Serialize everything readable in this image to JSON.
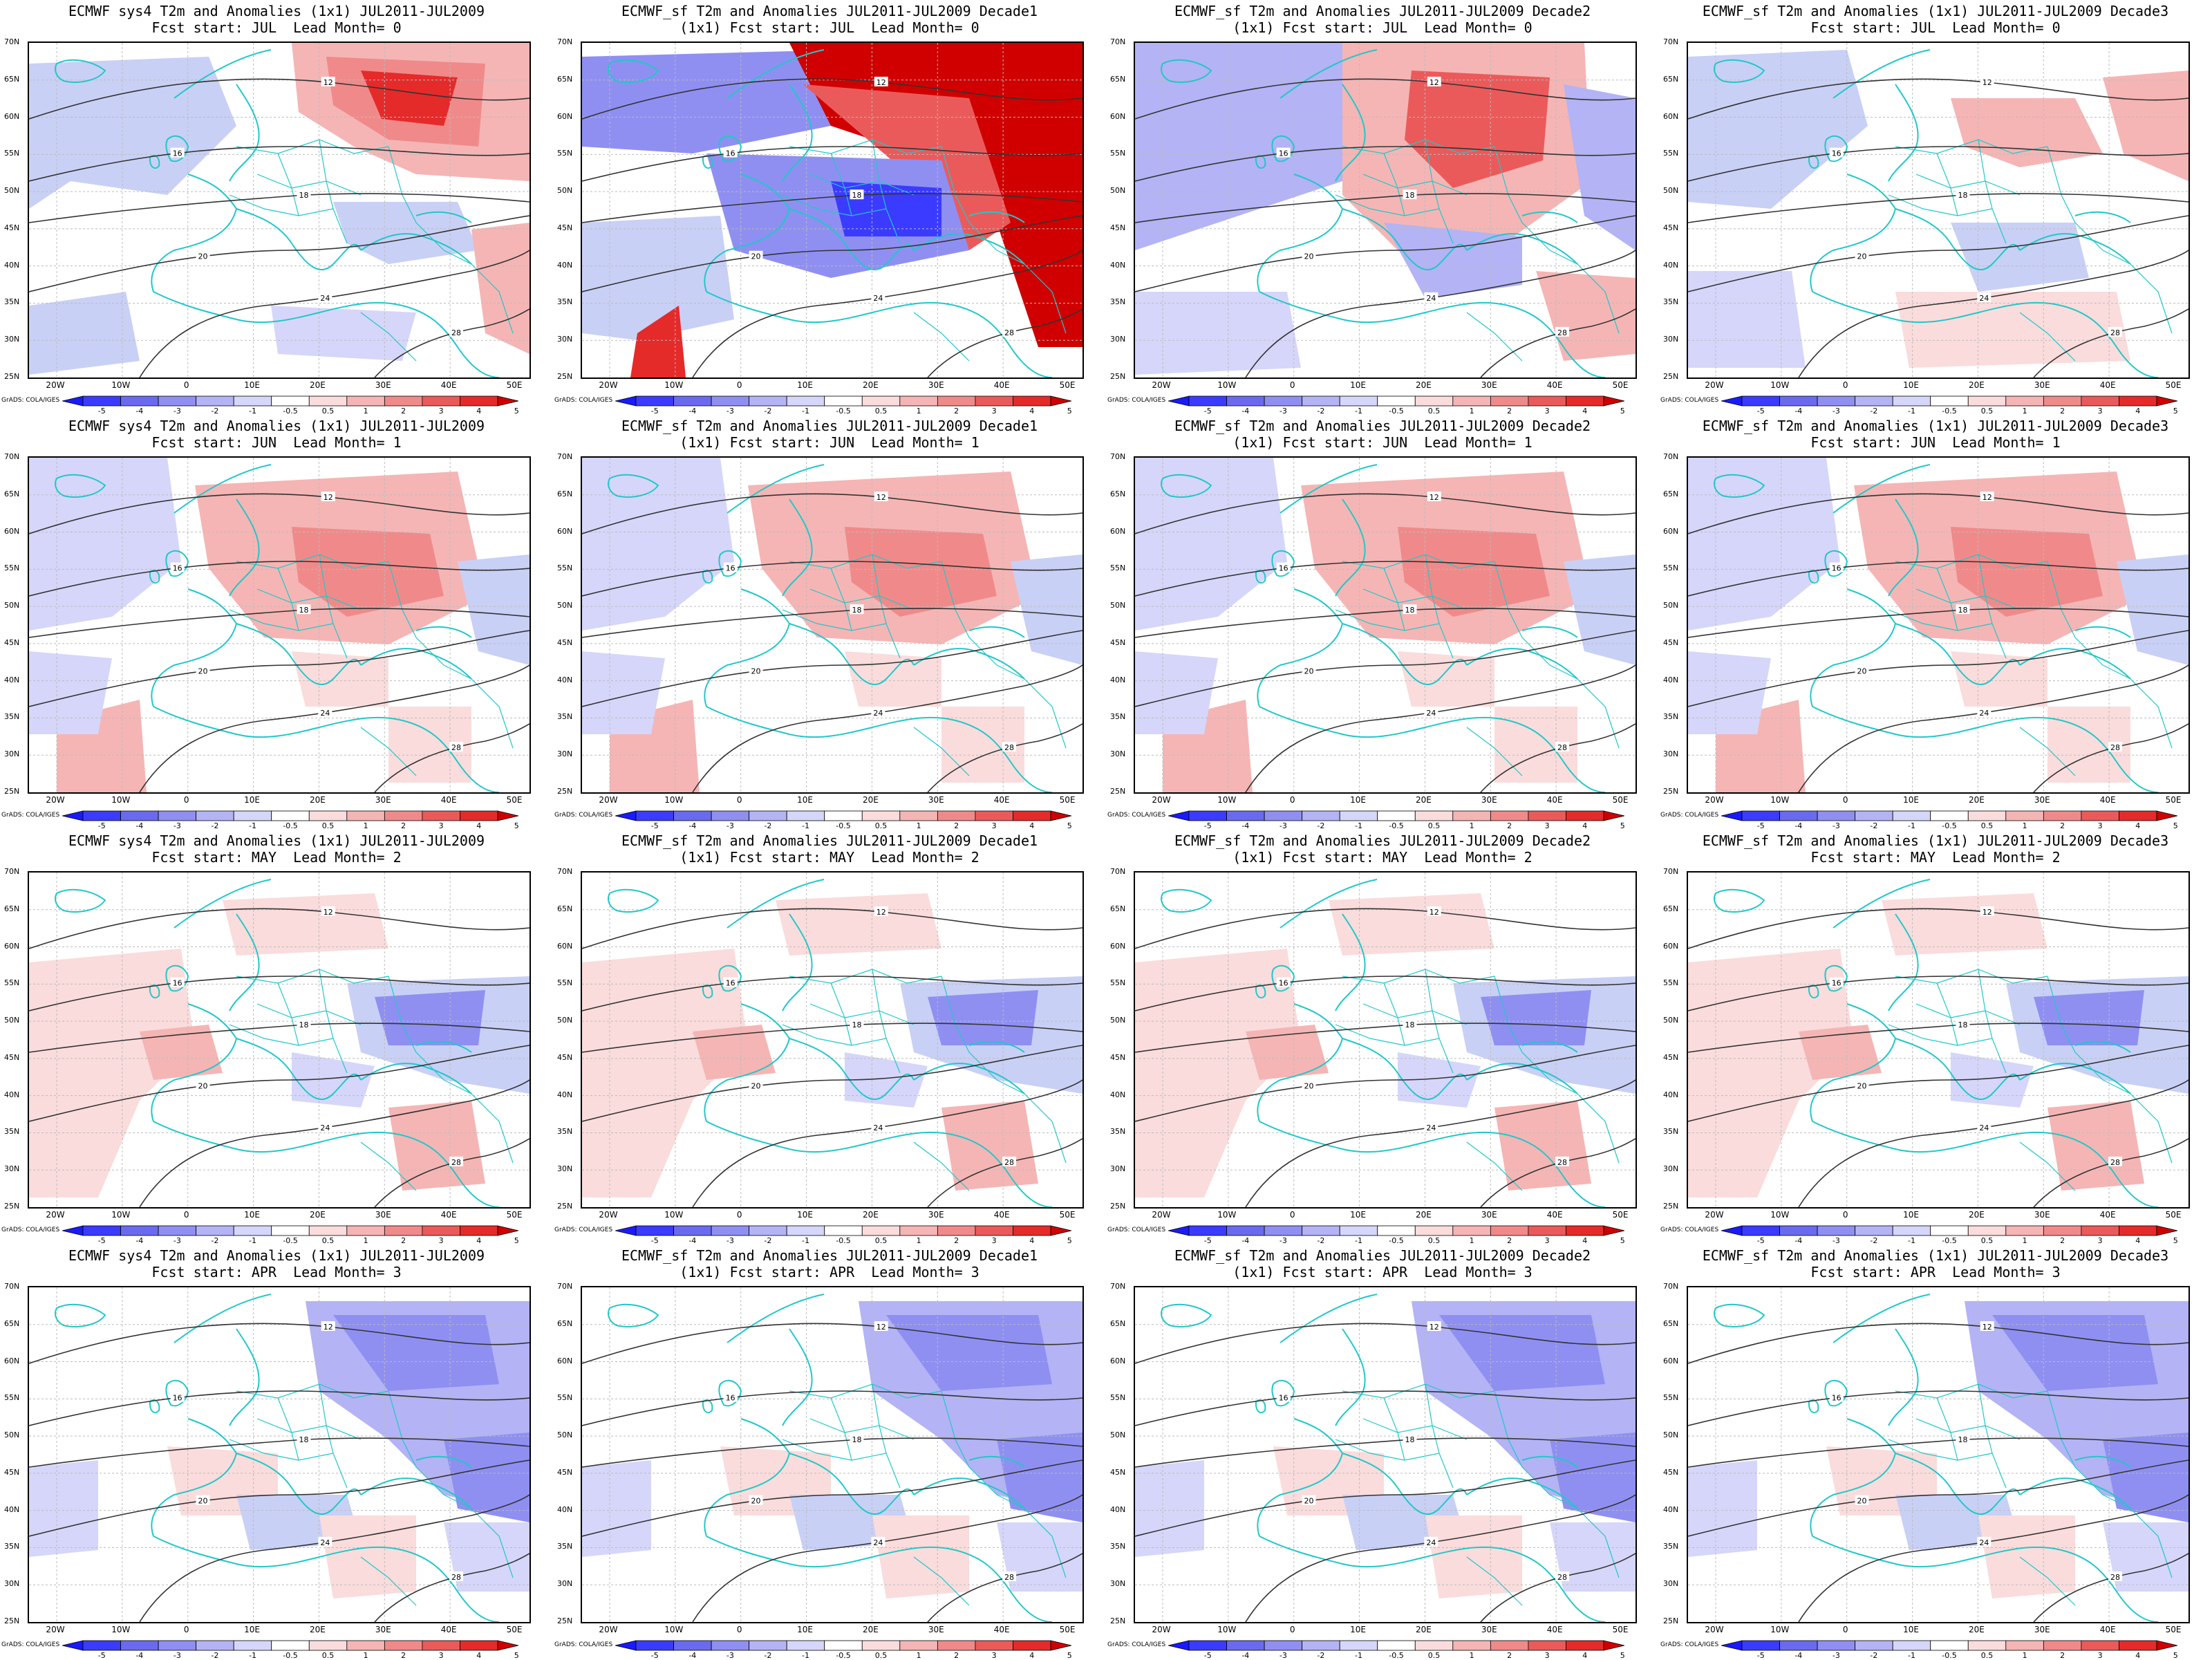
{
  "panels": [
    {
      "title1": "ECMWF sys4 T2m and Anomalies (1x1) JUL2011-JUL2009",
      "title2": "Fcst start: JUL  Lead Month= 0",
      "pattern": "r0"
    },
    {
      "title1": "ECMWF_sf T2m and Anomalies JUL2011-JUL2009 Decade1",
      "title2": "(1x1) Fcst start: JUL  Lead Month= 0",
      "pattern": "r0d1"
    },
    {
      "title1": "ECMWF_sf T2m and Anomalies JUL2011-JUL2009 Decade2",
      "title2": "(1x1) Fcst start: JUL  Lead Month= 0",
      "pattern": "r0d2"
    },
    {
      "title1": "ECMWF_sf T2m and Anomalies (1x1) JUL2011-JUL2009 Decade3",
      "title2": "Fcst start: JUL  Lead Month= 0",
      "pattern": "r0d3"
    },
    {
      "title1": "ECMWF sys4 T2m and Anomalies (1x1) JUL2011-JUL2009",
      "title2": "Fcst start: JUN  Lead Month= 1",
      "pattern": "r1"
    },
    {
      "title1": "ECMWF_sf T2m and Anomalies JUL2011-JUL2009 Decade1",
      "title2": "(1x1) Fcst start: JUN  Lead Month= 1",
      "pattern": "r1"
    },
    {
      "title1": "ECMWF_sf T2m and Anomalies JUL2011-JUL2009 Decade2",
      "title2": "(1x1) Fcst start: JUN  Lead Month= 1",
      "pattern": "r1"
    },
    {
      "title1": "ECMWF_sf T2m and Anomalies (1x1) JUL2011-JUL2009 Decade3",
      "title2": "Fcst start: JUN  Lead Month= 1",
      "pattern": "r1"
    },
    {
      "title1": "ECMWF sys4 T2m and Anomalies (1x1) JUL2011-JUL2009",
      "title2": "Fcst start: MAY  Lead Month= 2",
      "pattern": "r2"
    },
    {
      "title1": "ECMWF_sf T2m and Anomalies JUL2011-JUL2009 Decade1",
      "title2": "(1x1) Fcst start: MAY  Lead Month= 2",
      "pattern": "r2"
    },
    {
      "title1": "ECMWF_sf T2m and Anomalies JUL2011-JUL2009 Decade2",
      "title2": "(1x1) Fcst start: MAY  Lead Month= 2",
      "pattern": "r2"
    },
    {
      "title1": "ECMWF_sf T2m and Anomalies (1x1) JUL2011-JUL2009 Decade3",
      "title2": "Fcst start: MAY  Lead Month= 2",
      "pattern": "r2"
    },
    {
      "title1": "ECMWF sys4 T2m and Anomalies (1x1) JUL2011-JUL2009",
      "title2": "Fcst start: APR  Lead Month= 3",
      "pattern": "r3"
    },
    {
      "title1": "ECMWF_sf T2m and Anomalies JUL2011-JUL2009 Decade1",
      "title2": "(1x1) Fcst start: APR  Lead Month= 3",
      "pattern": "r3"
    },
    {
      "title1": "ECMWF_sf T2m and Anomalies JUL2011-JUL2009 Decade2",
      "title2": "(1x1) Fcst start: APR  Lead Month= 3",
      "pattern": "r3"
    },
    {
      "title1": "ECMWF_sf T2m and Anomalies (1x1) JUL2011-JUL2009 Decade3",
      "title2": "Fcst start: APR  Lead Month= 3",
      "pattern": "r3"
    }
  ],
  "lat_labels": [
    "70N",
    "65N",
    "60N",
    "55N",
    "50N",
    "45N",
    "40N",
    "35N",
    "30N",
    "25N"
  ],
  "lon_labels": [
    "20W",
    "10W",
    "0",
    "10E",
    "20E",
    "30E",
    "40E",
    "50E"
  ],
  "credit": "GrADS: COLA/IGES",
  "colorbar_labels": [
    "-5",
    "-4",
    "-3",
    "-2",
    "-1",
    "-0.5",
    "0.5",
    "1",
    "2",
    "3",
    "4",
    "5"
  ],
  "colorbar_colors": [
    "#1a1aff",
    "#3b3bff",
    "#6a6af0",
    "#8f8ff2",
    "#b3b3f5",
    "#d6d6fa",
    "#ffffff",
    "#fadcdc",
    "#f5b5b5",
    "#f08a8a",
    "#eb5a5a",
    "#e52a2a",
    "#d00000"
  ],
  "contour_labels": [
    "12",
    "16",
    "18",
    "20",
    "24",
    "28"
  ]
}
